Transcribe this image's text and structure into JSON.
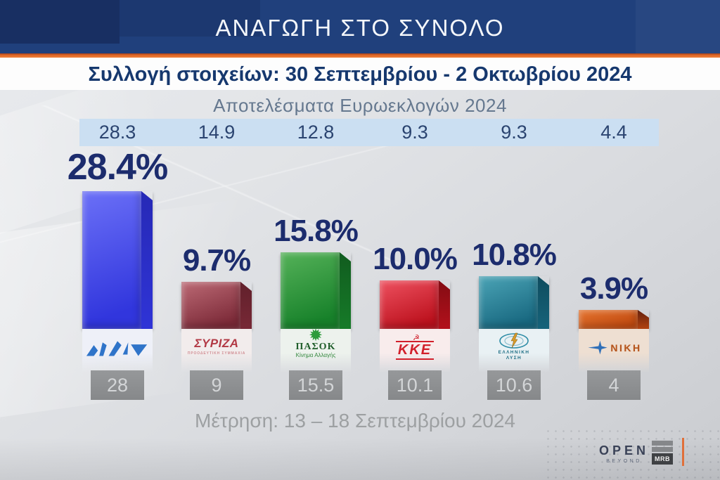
{
  "header": {
    "title": "ΑΝΑΓΩΓΗ ΣΤΟ ΣΥΝΟΛΟ",
    "subtitle": "Συλλογή στοιχείων: 30 Σεπτεμβρίου - 2 Οκτωβρίου 2024"
  },
  "euro_results": {
    "label": "Αποτελέσματα Ευρωεκλογών 2024"
  },
  "footer": {
    "measurement": "Μέτρηση: 13 – 18 Σεπτεμβρίου 2024"
  },
  "branding": {
    "open": "OPEN",
    "beyond": "BEYOND",
    "mrb": "MRB"
  },
  "parties": [
    {
      "id": "nd",
      "name": "ΝΔ",
      "percent": "28.4%",
      "value": 28.4,
      "euro": "28.3",
      "previous": "28",
      "logo_text": "ΝΔ",
      "colors": {
        "face_top": "#6b70f7",
        "face_bottom": "#3136dd",
        "side": "#2629b6",
        "pedestal": "#eef0f8"
      }
    },
    {
      "id": "syriza",
      "name": "ΣΥΡΙΖΑ",
      "percent": "9.7%",
      "value": 9.7,
      "euro": "14.9",
      "previous": "9",
      "logo_text": "ΣΥΡΙΖΑ",
      "logo_subtext": "ΠΡΟΟΔΕΥΤΙΚΗ ΣΥΜΜΑΧΙΑ",
      "colors": {
        "face_top": "#bc6a75",
        "face_bottom": "#7c2a38",
        "side": "#61202b",
        "pedestal": "#f2ecec"
      }
    },
    {
      "id": "pasok",
      "name": "ΠΑΣΟΚ",
      "percent": "15.8%",
      "value": 15.8,
      "euro": "12.8",
      "previous": "15.5",
      "logo_text": "ΠΑΣΟΚ",
      "logo_subtext": "Κίνημα Αλλαγής",
      "colors": {
        "face_top": "#55b259",
        "face_bottom": "#17812a",
        "side": "#115c1f",
        "pedestal": "#edf2ed"
      }
    },
    {
      "id": "kke",
      "name": "ΚΚΕ",
      "percent": "10.0%",
      "value": 10.0,
      "euro": "9.3",
      "previous": "10.1",
      "logo_text": "KKE",
      "colors": {
        "face_top": "#ee5160",
        "face_bottom": "#bc111d",
        "side": "#830c13",
        "pedestal": "#f8ecec"
      }
    },
    {
      "id": "el-lysi",
      "name": "ΕΛΛΗΝΙΚΗ ΛΥΣΗ",
      "percent": "10.8%",
      "value": 10.8,
      "euro": "9.3",
      "previous": "10.6",
      "logo_text": "ΕΛΛΗΝΙΚΗ",
      "logo_text2": "ΛΥΣΗ",
      "colors": {
        "face_top": "#4ba4b6",
        "face_bottom": "#186880",
        "side": "#0f4c5e",
        "pedestal": "#e9f1f4"
      }
    },
    {
      "id": "niki",
      "name": "ΝΙΚΗ",
      "percent": "3.9%",
      "value": 3.9,
      "euro": "4.4",
      "previous": "4",
      "logo_text": "ΝΙΚΗ",
      "colors": {
        "face_top": "#e4732e",
        "face_bottom": "#c14a10",
        "side": "#64200e",
        "pedestal": "#eedfd2"
      }
    }
  ],
  "chart_data": {
    "type": "bar",
    "title": "ΑΝΑΓΩΓΗ ΣΤΟ ΣΥΝΟΛΟ",
    "subtitle": "Συλλογή στοιχείων: 30 Σεπτεμβρίου - 2 Οκτωβρίου 2024",
    "categories": [
      "ΝΔ",
      "ΣΥΡΙΖΑ",
      "ΠΑΣΟΚ",
      "ΚΚΕ",
      "ΕΛΛΗΝΙΚΗ ΛΥΣΗ",
      "ΝΙΚΗ"
    ],
    "series": [
      {
        "name": "Αναγωγή στο σύνολο (%)",
        "values": [
          28.4,
          9.7,
          15.8,
          10.0,
          10.8,
          3.9
        ]
      },
      {
        "name": "Αποτελέσματα Ευρωεκλογών 2024 (%)",
        "values": [
          28.3,
          14.9,
          12.8,
          9.3,
          9.3,
          4.4
        ]
      },
      {
        "name": "Μέτρηση 13 – 18 Σεπτεμβρίου 2024 (%)",
        "values": [
          28,
          9,
          15.5,
          10.1,
          10.6,
          4
        ]
      }
    ],
    "xlabel": "",
    "ylabel": "",
    "ylim": [
      0,
      30
    ],
    "grid": false,
    "legend_position": "none",
    "bar_colors": [
      "#3136dd",
      "#7c2a38",
      "#17812a",
      "#bc111d",
      "#186880",
      "#c14a10"
    ]
  }
}
